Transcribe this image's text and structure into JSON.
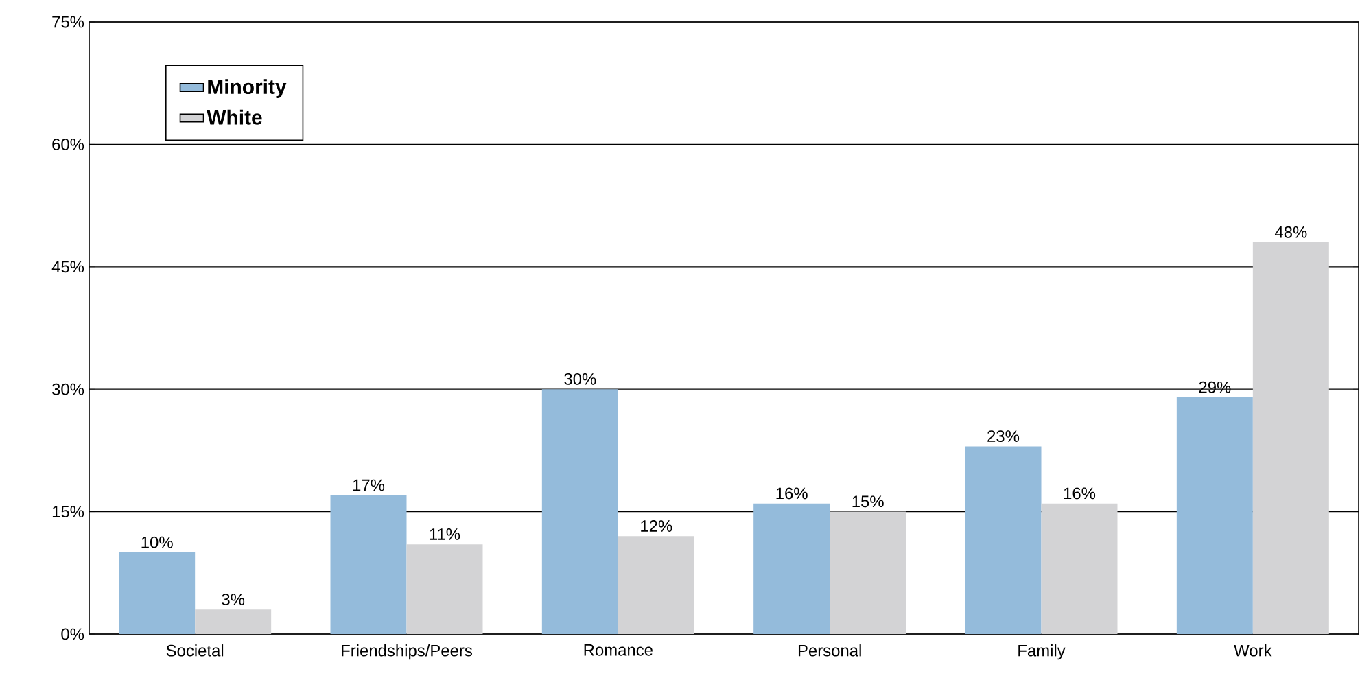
{
  "chart_data": {
    "type": "bar",
    "categories": [
      "Societal",
      "Friendships/Peers",
      "Romance",
      "Personal",
      "Family",
      "Work"
    ],
    "series": [
      {
        "name": "Minority",
        "color": "#94bbdb",
        "values": [
          10,
          17,
          30,
          16,
          23,
          29
        ],
        "value_labels": [
          "10%",
          "17%",
          "30%",
          "16%",
          "23%",
          "29%"
        ]
      },
      {
        "name": "White",
        "color": "#d3d3d5",
        "values": [
          3,
          11,
          12,
          15,
          16,
          48
        ],
        "value_labels": [
          "3%",
          "11%",
          "12%",
          "15%",
          "16%",
          "48%"
        ]
      }
    ],
    "ylim": [
      0,
      75
    ],
    "yticks": [
      {
        "value": 0,
        "label": "0%"
      },
      {
        "value": 15,
        "label": "15%"
      },
      {
        "value": 30,
        "label": "30%"
      },
      {
        "value": 45,
        "label": "45%"
      },
      {
        "value": 60,
        "label": "60%"
      },
      {
        "value": 75,
        "label": "75%"
      }
    ],
    "grid": "y",
    "legend": "top left"
  }
}
